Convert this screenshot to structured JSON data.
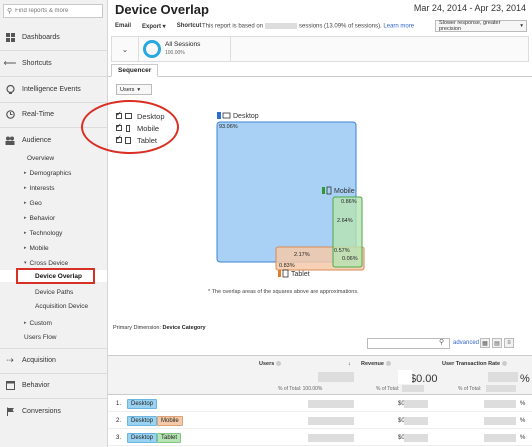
{
  "sidebar": {
    "search_placeholder": "Find reports & more",
    "items": [
      {
        "label": "Dashboards"
      },
      {
        "label": "Shortcuts"
      },
      {
        "label": "Intelligence Events"
      },
      {
        "label": "Real-Time"
      },
      {
        "label": "Audience"
      },
      {
        "label": "Acquisition"
      },
      {
        "label": "Behavior"
      },
      {
        "label": "Conversions"
      }
    ],
    "audience_sub": [
      {
        "label": "Overview",
        "arrow": ""
      },
      {
        "label": "Demographics",
        "arrow": "▸"
      },
      {
        "label": "Interests",
        "arrow": "▸"
      },
      {
        "label": "Geo",
        "arrow": "▸"
      },
      {
        "label": "Behavior",
        "arrow": "▸"
      },
      {
        "label": "Technology",
        "arrow": "▸"
      },
      {
        "label": "Mobile",
        "arrow": "▸"
      },
      {
        "label": "Cross Device",
        "arrow": "▾"
      },
      {
        "label": "Device Overlap",
        "arrow": ""
      },
      {
        "label": "Device Paths",
        "arrow": ""
      },
      {
        "label": "Acquisition Device",
        "arrow": ""
      },
      {
        "label": "Custom",
        "arrow": "▸"
      },
      {
        "label": "Users Flow",
        "arrow": ""
      }
    ]
  },
  "header": {
    "title": "Device Overlap",
    "date_range": "Mar 24, 2014 - Apr 23, 2014",
    "toolbar": {
      "email": "Email",
      "export": "Export ▾",
      "shortcut": "Shortcut"
    },
    "report_note_prefix": "This report is based on",
    "report_note_suffix": "sessions (13.09% of sessions).",
    "learn_more": "Learn more",
    "precision": "Slower response, greater precision"
  },
  "segment": {
    "name": "All Sessions",
    "pct": "100.00%"
  },
  "tabs": {
    "sequencer": "Sequencer"
  },
  "metric_select": "Users",
  "legend": [
    "Desktop",
    "Mobile",
    "Tablet"
  ],
  "venn": {
    "desktop_label": "Desktop",
    "desktop_pct": "93.06%",
    "mobile_label": "Mobile",
    "mobile_pct": "0.86%",
    "tablet_label": "Tablet",
    "tablet_pct": "0.83%",
    "dm_pct": "2.64%",
    "dt_pct": "2.17%",
    "mt_pct": "0.57%",
    "all_pct": "0.06%",
    "desktop_color": "#a8d1f5",
    "mobile_color": "#b6e3b3",
    "tablet_color": "#f4c9a8"
  },
  "approx_note": "* The overlap areas of the squares above are approximations.",
  "table": {
    "primary_dimension_label": "Primary Dimension:",
    "primary_dimension_value": "Device Category",
    "advanced": "advanced",
    "headers": {
      "users": "Users",
      "revenue": "Revenue",
      "utr": "User Transaction Rate"
    },
    "totals_prefix": {
      "users": "% of Total: 100.00%",
      "revenue": "% of Total:",
      "utr": "% of Total:"
    },
    "revenue_big": "$0.00",
    "utr_big": "%",
    "rows": [
      {
        "num": "1.",
        "tags": [
          "Desktop"
        ],
        "revenue": "$0",
        "utr": "%"
      },
      {
        "num": "2.",
        "tags": [
          "Desktop",
          "Mobile"
        ],
        "revenue": "$0",
        "utr": "%"
      },
      {
        "num": "3.",
        "tags": [
          "Desktop",
          "Tablet"
        ],
        "revenue": "$0",
        "utr": "%"
      }
    ]
  }
}
